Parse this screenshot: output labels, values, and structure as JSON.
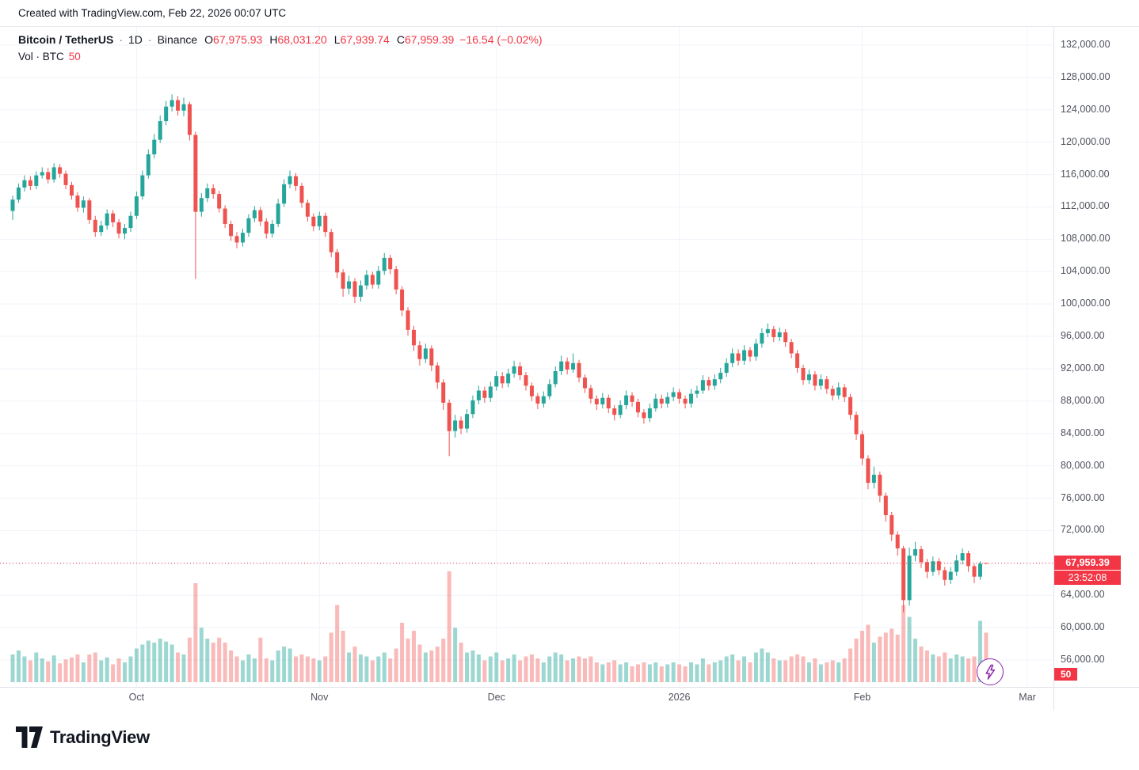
{
  "top_bar": {
    "text": "Created with TradingView.com, Feb 22, 2026 00:07 UTC"
  },
  "legend": {
    "symbol": "Bitcoin / TetherUS",
    "separator": "·",
    "interval": "1D",
    "exchange": "Binance",
    "open_label": "O",
    "open": "67,975.93",
    "high_label": "H",
    "high": "68,031.20",
    "low_label": "L",
    "low": "67,939.74",
    "close_label": "C",
    "close": "67,959.39",
    "change": "−16.54 (−0.02%)",
    "volume_label": "Vol · BTC",
    "volume_value": "50"
  },
  "price_scale": {
    "current_price": "67,959.39",
    "countdown": "23:52:08",
    "volume_badge": "50"
  },
  "footer": {
    "brand": "TradingView"
  },
  "chart_data": {
    "type": "candlestick+volume",
    "title": "Bitcoin / TetherUS · 1D · Binance",
    "y_axis": {
      "min": 56000,
      "max": 132000,
      "step": 4000,
      "format": "thousands-with-2-decimals"
    },
    "x_axis": {
      "months": [
        {
          "label": "Oct",
          "i": 21
        },
        {
          "label": "Nov",
          "i": 52
        },
        {
          "label": "Dec",
          "i": 82
        },
        {
          "label": "2026",
          "i": 113
        },
        {
          "label": "Feb",
          "i": 144
        },
        {
          "label": "Mar",
          "i": 172
        }
      ]
    },
    "colors": {
      "up": "#26a69a",
      "down": "#ef5350",
      "vol_up": "rgba(38,166,154,0.45)",
      "vol_down": "rgba(239,83,80,0.40)",
      "grid": "#f0f3fa",
      "price_line": "#f23645"
    },
    "last": {
      "open": 67975.93,
      "high": 68031.2,
      "low": 67939.74,
      "close": 67959.39,
      "change": -16.54,
      "change_pct": -0.02,
      "countdown": "23:52:08"
    },
    "volume_ma_display": 50,
    "candles": [
      [
        111500,
        113400,
        110400,
        112900,
        28
      ],
      [
        112900,
        114900,
        112500,
        114400,
        32
      ],
      [
        114400,
        115900,
        113900,
        115300,
        26
      ],
      [
        115300,
        115800,
        114100,
        114600,
        22
      ],
      [
        114600,
        116400,
        114200,
        115900,
        30
      ],
      [
        115900,
        116900,
        115500,
        116300,
        24
      ],
      [
        116300,
        116800,
        114900,
        115400,
        21
      ],
      [
        115400,
        117400,
        115000,
        116900,
        27
      ],
      [
        116900,
        117300,
        115600,
        116100,
        19
      ],
      [
        116100,
        116500,
        114200,
        114700,
        23
      ],
      [
        114700,
        115100,
        112900,
        113400,
        25
      ],
      [
        113400,
        113800,
        111400,
        111900,
        28
      ],
      [
        111900,
        113300,
        111300,
        112800,
        20
      ],
      [
        112800,
        113100,
        109900,
        110400,
        28
      ],
      [
        110400,
        110900,
        108300,
        108900,
        30
      ],
      [
        108900,
        110300,
        108400,
        109700,
        22
      ],
      [
        109700,
        111700,
        109200,
        111200,
        25
      ],
      [
        111200,
        111600,
        109500,
        110100,
        18
      ],
      [
        110100,
        110500,
        108100,
        108700,
        24
      ],
      [
        108700,
        109900,
        108000,
        109400,
        20
      ],
      [
        109400,
        111400,
        108900,
        110900,
        26
      ],
      [
        110900,
        113900,
        110500,
        113300,
        34
      ],
      [
        113300,
        116500,
        112900,
        115900,
        38
      ],
      [
        115900,
        119100,
        115500,
        118500,
        42
      ],
      [
        118500,
        121000,
        118000,
        120300,
        40
      ],
      [
        120300,
        123300,
        119900,
        122600,
        44
      ],
      [
        122600,
        125100,
        122100,
        124400,
        41
      ],
      [
        124400,
        125900,
        123800,
        125200,
        38
      ],
      [
        125200,
        125700,
        123300,
        123900,
        30
      ],
      [
        123900,
        125500,
        123200,
        124700,
        28
      ],
      [
        124700,
        125000,
        120200,
        120900,
        45
      ],
      [
        120900,
        121300,
        103100,
        111400,
        100
      ],
      [
        111400,
        113700,
        110800,
        113100,
        55
      ],
      [
        113100,
        114900,
        112600,
        114300,
        44
      ],
      [
        114300,
        114800,
        113000,
        113600,
        40
      ],
      [
        113600,
        114000,
        111300,
        111800,
        45
      ],
      [
        111800,
        112200,
        109400,
        109900,
        40
      ],
      [
        109900,
        110300,
        107800,
        108400,
        32
      ],
      [
        108400,
        108900,
        106900,
        107600,
        26
      ],
      [
        107600,
        109300,
        107100,
        108800,
        22
      ],
      [
        108800,
        111100,
        108300,
        110600,
        28
      ],
      [
        110600,
        112100,
        110100,
        111600,
        24
      ],
      [
        111600,
        112000,
        109600,
        110200,
        45
      ],
      [
        110200,
        110600,
        108100,
        108700,
        24
      ],
      [
        108700,
        110400,
        108200,
        109900,
        22
      ],
      [
        109900,
        113000,
        109500,
        112400,
        32
      ],
      [
        112400,
        115400,
        112000,
        114800,
        36
      ],
      [
        114800,
        116500,
        114300,
        115800,
        34
      ],
      [
        115800,
        116200,
        114000,
        114600,
        26
      ],
      [
        114600,
        115000,
        111900,
        112500,
        28
      ],
      [
        112500,
        112900,
        110200,
        110800,
        26
      ],
      [
        110800,
        111200,
        109000,
        109600,
        24
      ],
      [
        109600,
        111400,
        109100,
        110900,
        22
      ],
      [
        110900,
        111300,
        108300,
        108900,
        26
      ],
      [
        108900,
        109300,
        105800,
        106400,
        50
      ],
      [
        106400,
        106800,
        103200,
        103900,
        78
      ],
      [
        103900,
        104300,
        100900,
        101900,
        52
      ],
      [
        101900,
        103500,
        101200,
        102800,
        30
      ],
      [
        102800,
        103200,
        100100,
        100900,
        36
      ],
      [
        100900,
        102900,
        100300,
        102300,
        28
      ],
      [
        102300,
        104200,
        101800,
        103600,
        26
      ],
      [
        103600,
        104000,
        101900,
        102400,
        22
      ],
      [
        102400,
        104700,
        101900,
        104100,
        26
      ],
      [
        104100,
        106300,
        103600,
        105700,
        30
      ],
      [
        105700,
        106100,
        103700,
        104300,
        24
      ],
      [
        104300,
        104700,
        101200,
        101800,
        34
      ],
      [
        101800,
        102200,
        98500,
        99200,
        60
      ],
      [
        99200,
        99600,
        96100,
        96800,
        44
      ],
      [
        96800,
        97300,
        94200,
        94900,
        52
      ],
      [
        94900,
        95400,
        92400,
        93200,
        38
      ],
      [
        93200,
        95100,
        92700,
        94500,
        30
      ],
      [
        94500,
        94900,
        91700,
        92400,
        32
      ],
      [
        92400,
        92800,
        89500,
        90300,
        36
      ],
      [
        90300,
        90700,
        86900,
        87800,
        44
      ],
      [
        87800,
        88200,
        81200,
        84300,
        112
      ],
      [
        84300,
        86300,
        83500,
        85600,
        55
      ],
      [
        85600,
        86100,
        83900,
        84600,
        40
      ],
      [
        84600,
        87000,
        84100,
        86400,
        30
      ],
      [
        86400,
        88700,
        85900,
        88100,
        32
      ],
      [
        88100,
        89900,
        87600,
        89300,
        28
      ],
      [
        89300,
        89800,
        87800,
        88400,
        22
      ],
      [
        88400,
        90400,
        87900,
        89800,
        26
      ],
      [
        89800,
        91700,
        89300,
        91100,
        30
      ],
      [
        91100,
        91600,
        89600,
        90200,
        22
      ],
      [
        90200,
        92000,
        89700,
        91400,
        24
      ],
      [
        91400,
        93000,
        90900,
        92300,
        28
      ],
      [
        92300,
        92800,
        90600,
        91200,
        22
      ],
      [
        91200,
        91600,
        89300,
        89900,
        26
      ],
      [
        89900,
        90300,
        88000,
        88600,
        28
      ],
      [
        88600,
        89000,
        87000,
        87700,
        24
      ],
      [
        87700,
        89200,
        87200,
        88600,
        20
      ],
      [
        88600,
        90700,
        88200,
        90100,
        26
      ],
      [
        90100,
        92300,
        89700,
        91700,
        30
      ],
      [
        91700,
        93600,
        91200,
        92900,
        28
      ],
      [
        92900,
        93400,
        91300,
        91900,
        22
      ],
      [
        91900,
        93900,
        91500,
        92700,
        24
      ],
      [
        92700,
        93100,
        90300,
        90900,
        26
      ],
      [
        90900,
        91300,
        89000,
        89600,
        24
      ],
      [
        89600,
        90000,
        87700,
        88300,
        26
      ],
      [
        88300,
        88700,
        86900,
        87600,
        20
      ],
      [
        87600,
        89000,
        87100,
        88400,
        18
      ],
      [
        88400,
        88800,
        86500,
        87100,
        20
      ],
      [
        87100,
        87500,
        85600,
        86300,
        22
      ],
      [
        86300,
        88100,
        85900,
        87500,
        18
      ],
      [
        87500,
        89300,
        87000,
        88700,
        20
      ],
      [
        88700,
        89100,
        87300,
        87900,
        16
      ],
      [
        87900,
        88300,
        86000,
        86600,
        18
      ],
      [
        86600,
        87000,
        85200,
        85900,
        20
      ],
      [
        85900,
        87700,
        85400,
        87100,
        18
      ],
      [
        87100,
        88900,
        86700,
        88300,
        20
      ],
      [
        88300,
        88800,
        87100,
        87700,
        16
      ],
      [
        87700,
        89100,
        87200,
        88500,
        18
      ],
      [
        88500,
        89700,
        88000,
        89100,
        20
      ],
      [
        89100,
        89500,
        87700,
        88300,
        18
      ],
      [
        88300,
        88700,
        87100,
        87700,
        16
      ],
      [
        87700,
        89500,
        87200,
        88900,
        20
      ],
      [
        88900,
        89900,
        88400,
        89300,
        18
      ],
      [
        89300,
        91200,
        88900,
        90600,
        24
      ],
      [
        90600,
        91000,
        89300,
        89900,
        18
      ],
      [
        89900,
        91300,
        89400,
        90700,
        20
      ],
      [
        90700,
        92100,
        90200,
        91500,
        22
      ],
      [
        91500,
        93300,
        91000,
        92700,
        26
      ],
      [
        92700,
        94500,
        92200,
        93900,
        28
      ],
      [
        93900,
        94400,
        92400,
        93000,
        22
      ],
      [
        93000,
        94900,
        92500,
        94300,
        26
      ],
      [
        94300,
        94700,
        92900,
        93500,
        20
      ],
      [
        93500,
        95700,
        93000,
        95100,
        30
      ],
      [
        95100,
        97000,
        94600,
        96400,
        34
      ],
      [
        96400,
        97600,
        95900,
        96900,
        30
      ],
      [
        96900,
        97300,
        95300,
        95900,
        24
      ],
      [
        95900,
        97100,
        95400,
        96500,
        22
      ],
      [
        96500,
        96900,
        94700,
        95300,
        22
      ],
      [
        95300,
        95700,
        93300,
        93900,
        26
      ],
      [
        93900,
        94300,
        91500,
        92100,
        28
      ],
      [
        92100,
        92500,
        90000,
        90600,
        26
      ],
      [
        90600,
        91900,
        90100,
        91300,
        20
      ],
      [
        91300,
        91700,
        89300,
        89900,
        24
      ],
      [
        89900,
        91300,
        89400,
        90700,
        18
      ],
      [
        90700,
        91100,
        88900,
        89500,
        20
      ],
      [
        89500,
        89900,
        88100,
        88700,
        22
      ],
      [
        88700,
        90300,
        88200,
        89700,
        20
      ],
      [
        89700,
        90100,
        87900,
        88500,
        24
      ],
      [
        88500,
        88900,
        85700,
        86300,
        34
      ],
      [
        86300,
        86700,
        83200,
        83900,
        44
      ],
      [
        83900,
        84300,
        80100,
        80900,
        52
      ],
      [
        80900,
        81300,
        77100,
        77900,
        58
      ],
      [
        77900,
        79900,
        77200,
        78900,
        40
      ],
      [
        78900,
        79300,
        75500,
        76300,
        46
      ],
      [
        76300,
        76700,
        73100,
        73900,
        50
      ],
      [
        73900,
        74300,
        70700,
        71500,
        54
      ],
      [
        71500,
        71900,
        68900,
        69800,
        48
      ],
      [
        69800,
        70100,
        61900,
        63400,
        78
      ],
      [
        63400,
        69900,
        62700,
        68900,
        66
      ],
      [
        68900,
        70600,
        68200,
        69700,
        44
      ],
      [
        69700,
        70100,
        67400,
        68100,
        36
      ],
      [
        68100,
        68500,
        66100,
        66900,
        32
      ],
      [
        66900,
        68800,
        66400,
        68200,
        28
      ],
      [
        68200,
        68600,
        66500,
        67100,
        26
      ],
      [
        67100,
        67500,
        65200,
        65900,
        30
      ],
      [
        65900,
        67500,
        65400,
        66900,
        24
      ],
      [
        66900,
        69000,
        66400,
        68300,
        28
      ],
      [
        68300,
        69800,
        67800,
        69200,
        26
      ],
      [
        69200,
        69500,
        66900,
        67600,
        24
      ],
      [
        67600,
        67900,
        65500,
        66300,
        26
      ],
      [
        66300,
        68200,
        65900,
        67900,
        62
      ],
      [
        67975.93,
        68031.2,
        67939.74,
        67959.39,
        50
      ]
    ]
  }
}
